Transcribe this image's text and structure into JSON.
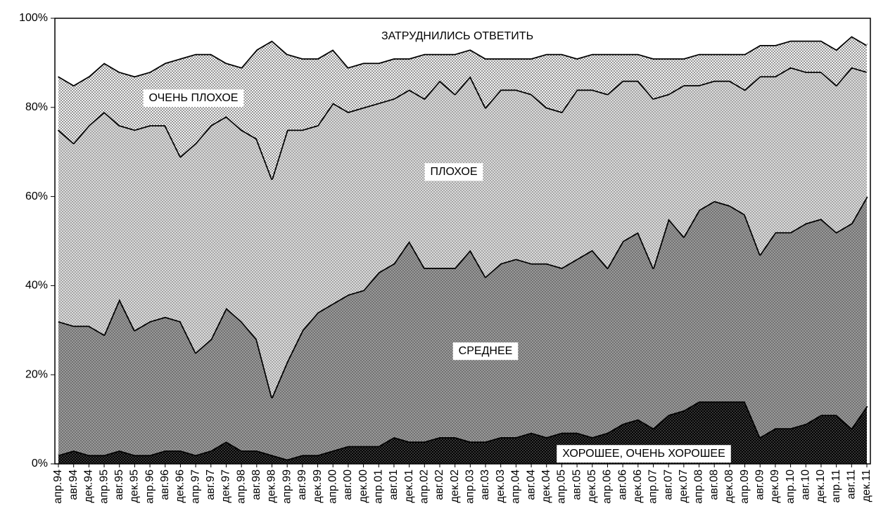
{
  "chart_data": {
    "type": "stacked_area",
    "categories": [
      "апр.94",
      "авг.94",
      "дек.94",
      "апр.95",
      "авг.95",
      "дек.95",
      "апр.96",
      "авг.96",
      "дек.96",
      "апр.97",
      "авг.97",
      "дек.97",
      "апр.98",
      "авг.98",
      "дек.98",
      "апр.99",
      "авг.99",
      "дек.99",
      "апр.00",
      "авг.00",
      "дек.00",
      "апр.01",
      "авг.01",
      "дек.01",
      "апр.02",
      "авг.02",
      "дек.02",
      "апр.03",
      "авг.03",
      "дек.03",
      "апр.04",
      "авг.04",
      "дек.04",
      "апр.05",
      "авг.05",
      "дек.05",
      "апр.06",
      "авг.06",
      "дек.06",
      "апр.07",
      "авг.07",
      "дек.07",
      "апр.08",
      "авг.08",
      "дек.08",
      "апр.09",
      "авг.09",
      "дек.09",
      "апр.10",
      "авг.10",
      "дек.10",
      "апр.11",
      "авг.11",
      "дек.11"
    ],
    "series": [
      {
        "name": "ХОРОШЕЕ, ОЧЕНЬ ХОРОШЕЕ",
        "color": "#3a3a3a",
        "values": [
          2,
          3,
          2,
          2,
          3,
          2,
          2,
          3,
          3,
          2,
          3,
          5,
          3,
          3,
          2,
          1,
          2,
          2,
          3,
          4,
          4,
          4,
          6,
          5,
          5,
          6,
          6,
          5,
          5,
          6,
          6,
          7,
          6,
          7,
          7,
          6,
          7,
          9,
          10,
          8,
          11,
          12,
          14,
          14,
          14,
          14,
          6,
          8,
          8,
          9,
          11,
          11,
          8,
          13
        ]
      },
      {
        "name": "СРЕДНЕЕ",
        "color": "#9a9a9a",
        "values": [
          30,
          28,
          29,
          27,
          34,
          28,
          30,
          30,
          29,
          23,
          25,
          30,
          29,
          25,
          13,
          22,
          28,
          32,
          33,
          34,
          35,
          39,
          39,
          45,
          39,
          38,
          38,
          43,
          37,
          39,
          40,
          38,
          39,
          37,
          39,
          42,
          37,
          41,
          42,
          36,
          44,
          39,
          43,
          45,
          44,
          42,
          41,
          44,
          44,
          45,
          44,
          41,
          46,
          47
        ]
      },
      {
        "name": "ПЛОХОЕ",
        "color": "#dcdcdc",
        "values": [
          43,
          41,
          45,
          50,
          39,
          45,
          44,
          43,
          37,
          47,
          48,
          43,
          43,
          45,
          49,
          52,
          45,
          42,
          45,
          41,
          41,
          38,
          37,
          34,
          38,
          42,
          39,
          39,
          38,
          39,
          38,
          38,
          35,
          35,
          38,
          36,
          39,
          36,
          34,
          38,
          28,
          34,
          28,
          27,
          28,
          28,
          40,
          35,
          37,
          34,
          33,
          33,
          35,
          28
        ]
      },
      {
        "name": "ОЧЕНЬ ПЛОХОЕ",
        "color": "#f4f4f4",
        "values": [
          12,
          13,
          11,
          11,
          12,
          12,
          12,
          14,
          22,
          20,
          16,
          12,
          14,
          20,
          31,
          17,
          16,
          15,
          12,
          10,
          10,
          9,
          9,
          7,
          10,
          6,
          9,
          6,
          11,
          7,
          7,
          8,
          12,
          13,
          7,
          8,
          9,
          6,
          6,
          9,
          8,
          6,
          7,
          6,
          6,
          8,
          7,
          7,
          6,
          7,
          7,
          8,
          7,
          6
        ]
      },
      {
        "name": "ЗАТРУДНИЛИСЬ ОТВЕТИТЬ",
        "color": "#ffffff",
        "values": [
          13,
          15,
          13,
          10,
          12,
          13,
          12,
          10,
          9,
          8,
          8,
          10,
          11,
          7,
          5,
          8,
          9,
          9,
          7,
          11,
          10,
          10,
          9,
          9,
          8,
          8,
          8,
          7,
          9,
          9,
          9,
          9,
          8,
          8,
          9,
          8,
          8,
          8,
          8,
          9,
          9,
          9,
          8,
          8,
          8,
          8,
          6,
          6,
          5,
          5,
          5,
          7,
          4,
          6
        ]
      }
    ],
    "ylim": [
      0,
      100
    ],
    "yticks": [
      {
        "value": 0,
        "label": "0%"
      },
      {
        "value": 20,
        "label": "20%"
      },
      {
        "value": 40,
        "label": "40%"
      },
      {
        "value": 60,
        "label": "60%"
      },
      {
        "value": 80,
        "label": "80%"
      },
      {
        "value": 100,
        "label": "100%"
      }
    ]
  }
}
